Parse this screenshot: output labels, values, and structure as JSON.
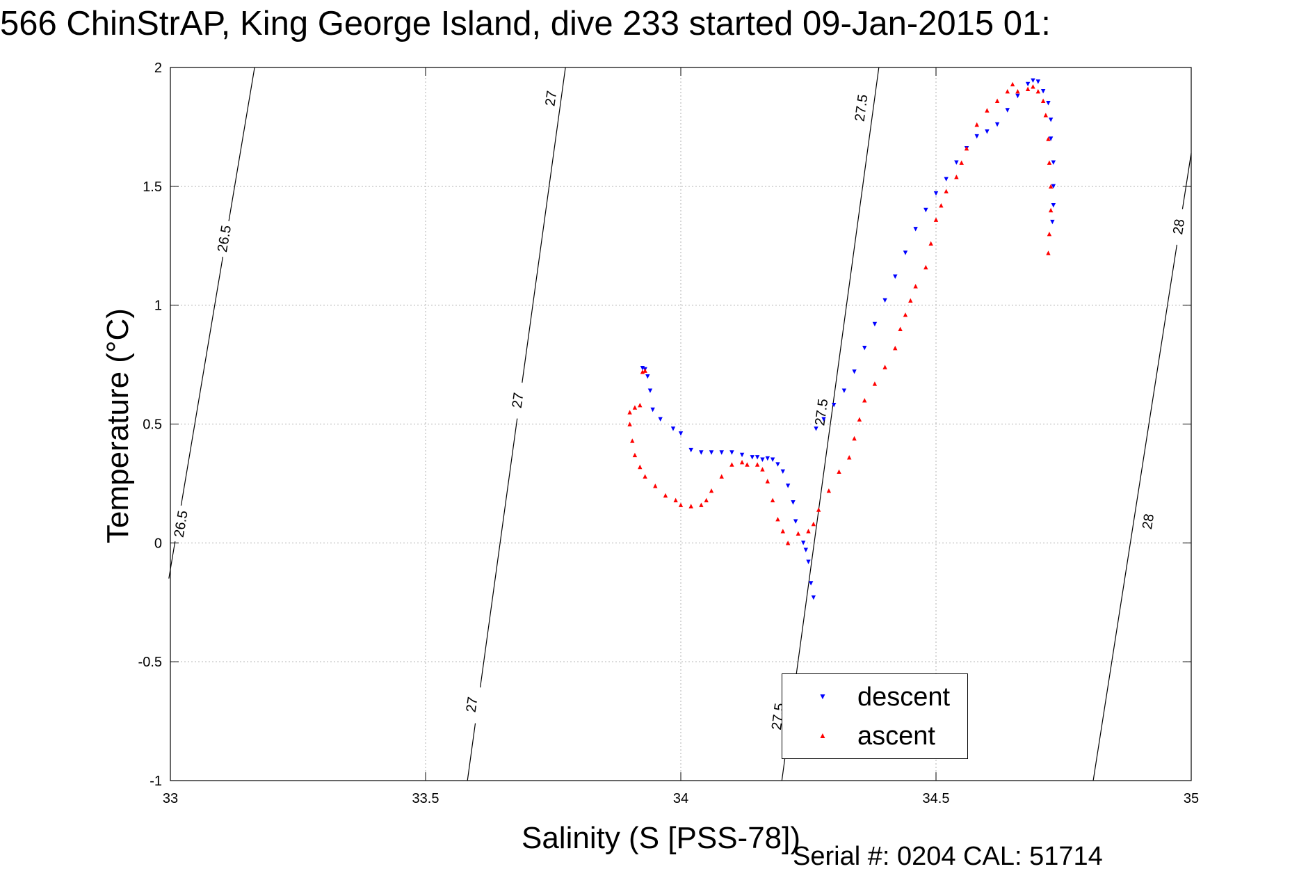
{
  "figure": {
    "title": "566 ChinStrAP, King George Island, dive 233 started 09-Jan-2015 01:",
    "serial_text": "Serial #: 0204  CAL: 51714"
  },
  "chart_data": {
    "type": "scatter",
    "title": "566 ChinStrAP, King George Island, dive 233 started 09-Jan-2015 01:",
    "xlabel": "Salinity (S [PSS-78])",
    "ylabel": "Temperature (°C)",
    "xlim": [
      33,
      35
    ],
    "ylim": [
      -1,
      2
    ],
    "x_ticks": [
      33,
      33.5,
      34,
      34.5,
      35
    ],
    "y_ticks": [
      -1,
      -0.5,
      0,
      0.5,
      1,
      1.5,
      2
    ],
    "grid": true,
    "legend_position": "bottom-right",
    "colors": {
      "descent": "#0000ff",
      "ascent": "#ff0000",
      "contour": "#000000",
      "grid": "#b0b0b0"
    },
    "series": [
      {
        "name": "descent",
        "marker": "down-triangle",
        "color": "#0000ff",
        "points": [
          [
            34.26,
            -0.23
          ],
          [
            34.255,
            -0.17
          ],
          [
            34.25,
            -0.08
          ],
          [
            34.245,
            -0.03
          ],
          [
            34.24,
            0.0
          ],
          [
            34.225,
            0.09
          ],
          [
            34.22,
            0.17
          ],
          [
            34.21,
            0.24
          ],
          [
            34.2,
            0.3
          ],
          [
            34.19,
            0.33
          ],
          [
            34.18,
            0.35
          ],
          [
            34.17,
            0.355
          ],
          [
            34.16,
            0.35
          ],
          [
            34.15,
            0.36
          ],
          [
            34.14,
            0.36
          ],
          [
            34.12,
            0.37
          ],
          [
            34.1,
            0.38
          ],
          [
            34.08,
            0.38
          ],
          [
            34.06,
            0.38
          ],
          [
            34.04,
            0.38
          ],
          [
            34.02,
            0.39
          ],
          [
            34.0,
            0.46
          ],
          [
            33.985,
            0.48
          ],
          [
            33.96,
            0.52
          ],
          [
            33.945,
            0.56
          ],
          [
            33.94,
            0.64
          ],
          [
            33.935,
            0.7
          ],
          [
            33.93,
            0.73
          ],
          [
            33.925,
            0.735
          ],
          [
            34.265,
            0.48
          ],
          [
            34.28,
            0.52
          ],
          [
            34.3,
            0.58
          ],
          [
            34.32,
            0.64
          ],
          [
            34.34,
            0.72
          ],
          [
            34.36,
            0.82
          ],
          [
            34.38,
            0.92
          ],
          [
            34.4,
            1.02
          ],
          [
            34.42,
            1.12
          ],
          [
            34.44,
            1.22
          ],
          [
            34.46,
            1.32
          ],
          [
            34.48,
            1.4
          ],
          [
            34.5,
            1.47
          ],
          [
            34.52,
            1.53
          ],
          [
            34.54,
            1.6
          ],
          [
            34.56,
            1.66
          ],
          [
            34.58,
            1.71
          ],
          [
            34.6,
            1.73
          ],
          [
            34.62,
            1.76
          ],
          [
            34.64,
            1.82
          ],
          [
            34.66,
            1.88
          ],
          [
            34.68,
            1.93
          ],
          [
            34.69,
            1.945
          ],
          [
            34.7,
            1.94
          ],
          [
            34.71,
            1.9
          ],
          [
            34.72,
            1.85
          ],
          [
            34.725,
            1.78
          ],
          [
            34.725,
            1.7
          ],
          [
            34.73,
            1.6
          ],
          [
            34.73,
            1.5
          ],
          [
            34.73,
            1.42
          ],
          [
            34.728,
            1.35
          ]
        ]
      },
      {
        "name": "ascent",
        "marker": "up-triangle",
        "color": "#ff0000",
        "points": [
          [
            34.72,
            1.22
          ],
          [
            34.722,
            1.3
          ],
          [
            34.725,
            1.4
          ],
          [
            34.725,
            1.5
          ],
          [
            34.722,
            1.6
          ],
          [
            34.72,
            1.7
          ],
          [
            34.715,
            1.8
          ],
          [
            34.71,
            1.86
          ],
          [
            34.7,
            1.9
          ],
          [
            34.69,
            1.92
          ],
          [
            34.68,
            1.91
          ],
          [
            34.66,
            1.9
          ],
          [
            34.65,
            1.93
          ],
          [
            34.64,
            1.9
          ],
          [
            34.62,
            1.86
          ],
          [
            34.6,
            1.82
          ],
          [
            34.58,
            1.76
          ],
          [
            34.56,
            1.66
          ],
          [
            34.55,
            1.6
          ],
          [
            34.54,
            1.54
          ],
          [
            34.52,
            1.48
          ],
          [
            34.51,
            1.42
          ],
          [
            34.5,
            1.36
          ],
          [
            34.49,
            1.26
          ],
          [
            34.48,
            1.16
          ],
          [
            34.46,
            1.08
          ],
          [
            34.45,
            1.02
          ],
          [
            34.44,
            0.96
          ],
          [
            34.43,
            0.9
          ],
          [
            34.42,
            0.82
          ],
          [
            34.4,
            0.74
          ],
          [
            34.38,
            0.67
          ],
          [
            34.36,
            0.6
          ],
          [
            34.35,
            0.52
          ],
          [
            34.34,
            0.44
          ],
          [
            34.33,
            0.36
          ],
          [
            34.31,
            0.3
          ],
          [
            34.29,
            0.22
          ],
          [
            34.27,
            0.14
          ],
          [
            34.26,
            0.08
          ],
          [
            34.25,
            0.05
          ],
          [
            34.23,
            0.04
          ],
          [
            34.21,
            0.0
          ],
          [
            34.2,
            0.05
          ],
          [
            34.19,
            0.1
          ],
          [
            34.18,
            0.18
          ],
          [
            34.17,
            0.26
          ],
          [
            34.16,
            0.31
          ],
          [
            34.15,
            0.33
          ],
          [
            34.13,
            0.33
          ],
          [
            34.12,
            0.34
          ],
          [
            34.1,
            0.33
          ],
          [
            34.08,
            0.28
          ],
          [
            34.06,
            0.22
          ],
          [
            34.05,
            0.18
          ],
          [
            34.04,
            0.16
          ],
          [
            34.02,
            0.155
          ],
          [
            34.0,
            0.16
          ],
          [
            33.99,
            0.18
          ],
          [
            33.97,
            0.2
          ],
          [
            33.95,
            0.24
          ],
          [
            33.93,
            0.28
          ],
          [
            33.92,
            0.32
          ],
          [
            33.91,
            0.37
          ],
          [
            33.905,
            0.43
          ],
          [
            33.9,
            0.5
          ],
          [
            33.9,
            0.55
          ],
          [
            33.91,
            0.57
          ],
          [
            33.92,
            0.58
          ],
          [
            33.925,
            0.72
          ],
          [
            33.93,
            0.725
          ]
        ]
      }
    ],
    "isopycnals": [
      {
        "label": "26.5",
        "line": [
          [
            32.997,
            -0.15
          ],
          [
            33.165,
            2.0
          ]
        ],
        "label_positions": [
          [
            33.105,
            1.28
          ],
          [
            33.02,
            0.08
          ]
        ]
      },
      {
        "label": "27",
        "line": [
          [
            33.582,
            -1.0
          ],
          [
            33.774,
            2.0
          ]
        ],
        "label_positions": [
          [
            33.745,
            1.87
          ],
          [
            33.68,
            0.6
          ],
          [
            33.59,
            -0.68
          ]
        ]
      },
      {
        "label": "27.5",
        "line": [
          [
            34.198,
            -1.0
          ],
          [
            34.388,
            2.0
          ]
        ],
        "label_positions": [
          [
            34.353,
            1.83
          ],
          [
            34.275,
            0.55
          ],
          [
            34.19,
            -0.73
          ]
        ]
      },
      {
        "label": "28",
        "line": [
          [
            34.808,
            -1.0
          ],
          [
            35.0,
            1.64
          ]
        ],
        "label_positions": [
          [
            34.975,
            1.33
          ],
          [
            34.915,
            0.09
          ]
        ]
      }
    ]
  },
  "legend": {
    "items": [
      {
        "label": "descent",
        "color": "#0000ff",
        "marker": "down-triangle"
      },
      {
        "label": "ascent",
        "color": "#ff0000",
        "marker": "up-triangle"
      }
    ]
  }
}
